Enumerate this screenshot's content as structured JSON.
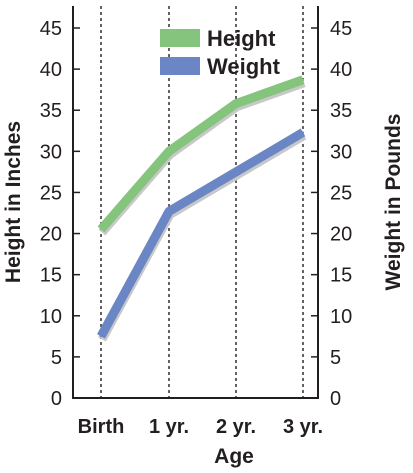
{
  "chart_data": {
    "type": "line",
    "categories": [
      "Birth",
      "1 yr.",
      "2 yr.",
      "3 yr."
    ],
    "xlabel": "Age",
    "ylabel_left": "Height in Inches",
    "ylabel_right": "Weight in Pounds",
    "ylim": [
      0,
      45
    ],
    "yticks": [
      0,
      5,
      10,
      15,
      20,
      25,
      30,
      35,
      40,
      45
    ],
    "grid": "vertical dotted lines at each category",
    "legend_position": "top",
    "series": [
      {
        "name": "Height",
        "values": [
          20.5,
          30,
          35.8,
          38.7
        ],
        "color": "#84c47c"
      },
      {
        "name": "Weight",
        "values": [
          7.5,
          22.7,
          27.5,
          32.3
        ],
        "color": "#6b86c4"
      }
    ]
  }
}
